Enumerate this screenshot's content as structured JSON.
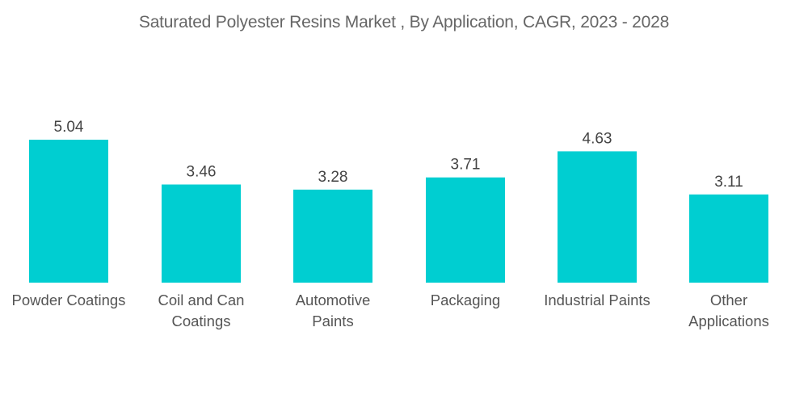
{
  "chart_data": {
    "type": "bar",
    "title": "Saturated Polyester Resins Market , By Application, CAGR, 2023 - 2028",
    "categories": [
      [
        "Powder Coatings"
      ],
      [
        "Coil and Can",
        "Coatings"
      ],
      [
        "Automotive",
        "Paints"
      ],
      [
        "Packaging"
      ],
      [
        "Industrial Paints"
      ],
      [
        "Other",
        "Applications"
      ]
    ],
    "values": [
      5.04,
      3.46,
      3.28,
      3.71,
      4.63,
      3.11
    ],
    "value_labels": [
      "5.04",
      "3.46",
      "3.28",
      "3.71",
      "4.63",
      "3.11"
    ],
    "xlabel": "",
    "ylabel": "",
    "ylim": [
      0,
      5.04
    ],
    "grid": false,
    "legend": "none",
    "bar_color": "#00CED1"
  }
}
